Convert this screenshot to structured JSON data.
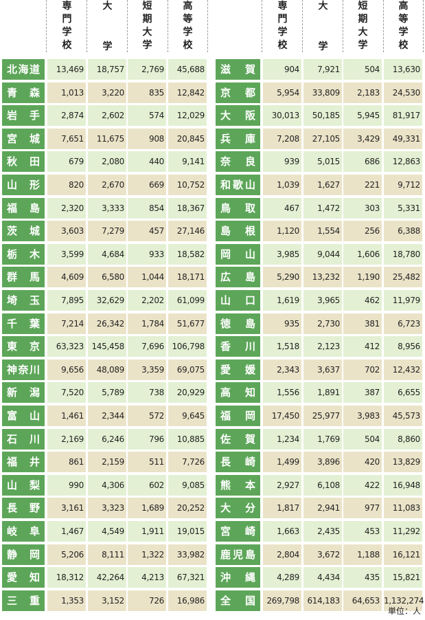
{
  "headers": [
    [
      "専",
      "門",
      "学",
      "校"
    ],
    [
      "大",
      "学"
    ],
    [
      "短",
      "期",
      "大",
      "学"
    ],
    [
      "高",
      "等",
      "学",
      "校"
    ]
  ],
  "colors": {
    "label": "#5da659",
    "row_light_green": "#e3f0d3",
    "row_beige": "#ebe3c8"
  },
  "left_rows": [
    {
      "name": "北海道",
      "v": [
        "13,469",
        "18,757",
        "2,769",
        "45,688"
      ]
    },
    {
      "name": "青森",
      "v": [
        "1,013",
        "3,220",
        "835",
        "12,842"
      ]
    },
    {
      "name": "岩手",
      "v": [
        "2,874",
        "2,602",
        "574",
        "12,029"
      ]
    },
    {
      "name": "宮城",
      "v": [
        "7,651",
        "11,675",
        "908",
        "20,845"
      ]
    },
    {
      "name": "秋田",
      "v": [
        "679",
        "2,080",
        "440",
        "9,141"
      ]
    },
    {
      "name": "山形",
      "v": [
        "820",
        "2,670",
        "669",
        "10,752"
      ]
    },
    {
      "name": "福島",
      "v": [
        "2,320",
        "3,333",
        "854",
        "18,367"
      ]
    },
    {
      "name": "茨城",
      "v": [
        "3,603",
        "7,279",
        "457",
        "27,146"
      ]
    },
    {
      "name": "栃木",
      "v": [
        "3,599",
        "4,684",
        "933",
        "18,582"
      ]
    },
    {
      "name": "群馬",
      "v": [
        "4,609",
        "6,580",
        "1,044",
        "18,171"
      ]
    },
    {
      "name": "埼玉",
      "v": [
        "7,895",
        "32,629",
        "2,202",
        "61,099"
      ]
    },
    {
      "name": "千葉",
      "v": [
        "7,214",
        "26,342",
        "1,784",
        "51,677"
      ]
    },
    {
      "name": "東京",
      "v": [
        "63,323",
        "145,458",
        "7,696",
        "106,798"
      ]
    },
    {
      "name": "神奈川",
      "v": [
        "9,656",
        "48,089",
        "3,359",
        "69,075"
      ]
    },
    {
      "name": "新潟",
      "v": [
        "7,520",
        "5,789",
        "738",
        "20,929"
      ]
    },
    {
      "name": "富山",
      "v": [
        "1,461",
        "2,344",
        "572",
        "9,645"
      ]
    },
    {
      "name": "石川",
      "v": [
        "2,169",
        "6,246",
        "796",
        "10,885"
      ]
    },
    {
      "name": "福井",
      "v": [
        "861",
        "2,159",
        "511",
        "7,726"
      ]
    },
    {
      "name": "山梨",
      "v": [
        "990",
        "4,306",
        "602",
        "9,085"
      ]
    },
    {
      "name": "長野",
      "v": [
        "3,161",
        "3,323",
        "1,689",
        "20,252"
      ]
    },
    {
      "name": "岐阜",
      "v": [
        "1,467",
        "4,549",
        "1,911",
        "19,015"
      ]
    },
    {
      "name": "静岡",
      "v": [
        "5,206",
        "8,111",
        "1,322",
        "33,982"
      ]
    },
    {
      "name": "愛知",
      "v": [
        "18,312",
        "42,264",
        "4,213",
        "67,321"
      ]
    },
    {
      "name": "三重",
      "v": [
        "1,353",
        "3,152",
        "726",
        "16,986"
      ]
    }
  ],
  "right_rows": [
    {
      "name": "滋賀",
      "v": [
        "904",
        "7,921",
        "504",
        "13,630"
      ]
    },
    {
      "name": "京都",
      "v": [
        "5,954",
        "33,809",
        "2,183",
        "24,530"
      ]
    },
    {
      "name": "大阪",
      "v": [
        "30,013",
        "50,185",
        "5,945",
        "81,917"
      ]
    },
    {
      "name": "兵庫",
      "v": [
        "7,208",
        "27,105",
        "3,429",
        "49,331"
      ]
    },
    {
      "name": "奈良",
      "v": [
        "939",
        "5,015",
        "686",
        "12,863"
      ]
    },
    {
      "name": "和歌山",
      "v": [
        "1,039",
        "1,627",
        "221",
        "9,712"
      ]
    },
    {
      "name": "鳥取",
      "v": [
        "467",
        "1,472",
        "303",
        "5,331"
      ]
    },
    {
      "name": "島根",
      "v": [
        "1,120",
        "1,554",
        "256",
        "6,388"
      ]
    },
    {
      "name": "岡山",
      "v": [
        "3,985",
        "9,044",
        "1,606",
        "18,780"
      ]
    },
    {
      "name": "広島",
      "v": [
        "5,290",
        "13,232",
        "1,190",
        "25,482"
      ]
    },
    {
      "name": "山口",
      "v": [
        "1,619",
        "3,965",
        "462",
        "11,979"
      ]
    },
    {
      "name": "徳島",
      "v": [
        "935",
        "2,730",
        "381",
        "6,723"
      ]
    },
    {
      "name": "香川",
      "v": [
        "1,518",
        "2,123",
        "412",
        "8,956"
      ]
    },
    {
      "name": "愛媛",
      "v": [
        "2,343",
        "3,637",
        "702",
        "12,432"
      ]
    },
    {
      "name": "高知",
      "v": [
        "1,556",
        "1,891",
        "387",
        "6,655"
      ]
    },
    {
      "name": "福岡",
      "v": [
        "17,450",
        "25,977",
        "3,983",
        "45,573"
      ]
    },
    {
      "name": "佐賀",
      "v": [
        "1,234",
        "1,769",
        "504",
        "8,860"
      ]
    },
    {
      "name": "長崎",
      "v": [
        "1,499",
        "3,896",
        "420",
        "13,829"
      ]
    },
    {
      "name": "熊本",
      "v": [
        "2,927",
        "6,108",
        "422",
        "16,948"
      ]
    },
    {
      "name": "大分",
      "v": [
        "1,817",
        "2,941",
        "977",
        "11,083"
      ]
    },
    {
      "name": "宮崎",
      "v": [
        "1,663",
        "2,435",
        "453",
        "11,292"
      ]
    },
    {
      "name": "鹿児島",
      "v": [
        "2,804",
        "3,672",
        "1,188",
        "16,121"
      ]
    },
    {
      "name": "沖縄",
      "v": [
        "4,289",
        "4,434",
        "435",
        "15,821"
      ]
    },
    {
      "name": "全国",
      "v": [
        "269,798",
        "614,183",
        "64,653",
        "1,132,274"
      ]
    }
  ],
  "unit": "単位：人"
}
